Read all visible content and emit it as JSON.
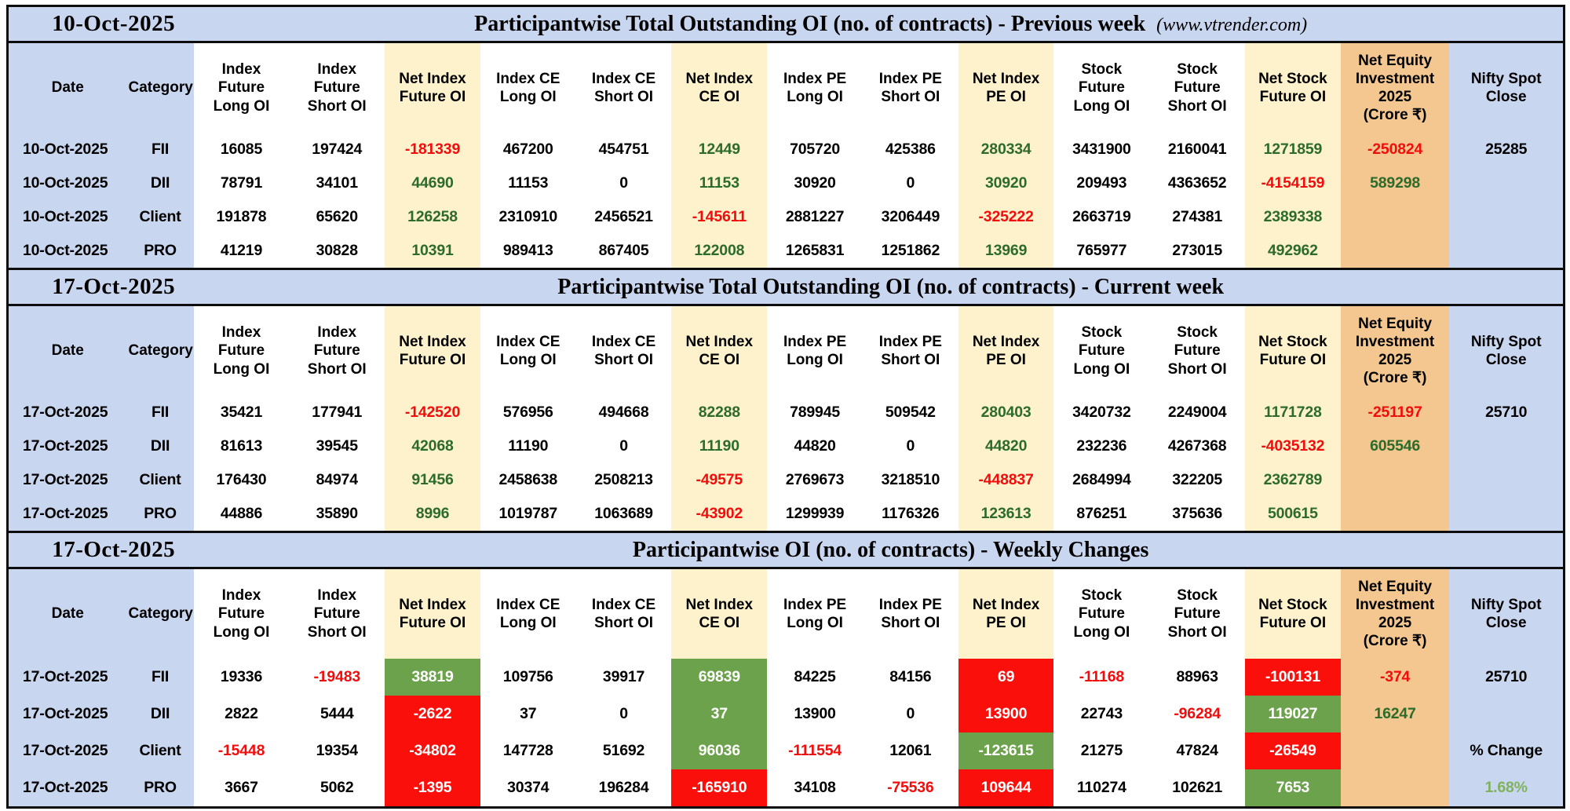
{
  "colors": {
    "band_blue": "#c9d6f0",
    "net_column_cream": "#fdf2cc",
    "equity_column_orange": "#f3c78f",
    "positive_text_green": "#2d6b2b",
    "negative_text_red": "#f20d0d",
    "change_cell_green": "#6da24d",
    "change_cell_red": "#fb0f0b",
    "pct_change_green": "#7fb25a"
  },
  "columns": [
    {
      "label": "Date",
      "bg": "blue"
    },
    {
      "label": "Category",
      "bg": "blue"
    },
    {
      "label": "Index\nFuture\nLong OI",
      "bg": "white"
    },
    {
      "label": "Index\nFuture\nShort OI",
      "bg": "white"
    },
    {
      "label": "Net Index\nFuture OI",
      "bg": "cream"
    },
    {
      "label": "Index CE\nLong OI",
      "bg": "white"
    },
    {
      "label": "Index CE\nShort OI",
      "bg": "white"
    },
    {
      "label": "Net Index\nCE OI",
      "bg": "cream"
    },
    {
      "label": "Index PE\nLong OI",
      "bg": "white"
    },
    {
      "label": "Index PE\nShort OI",
      "bg": "white"
    },
    {
      "label": "Net Index\nPE OI",
      "bg": "cream"
    },
    {
      "label": "Stock\nFuture\nLong OI",
      "bg": "white"
    },
    {
      "label": "Stock\nFuture\nShort OI",
      "bg": "white"
    },
    {
      "label": "Net Stock\nFuture OI",
      "bg": "cream"
    },
    {
      "label": "Net Equity\nInvestment\n2025\n(Crore ₹)",
      "bg": "orange"
    },
    {
      "label": "Nifty Spot\nClose",
      "bg": "blue"
    }
  ],
  "chart_data": [
    {
      "type": "table",
      "id": "previous-week",
      "date": "10-Oct-2025",
      "title": "Participantwise Total Outstanding OI (no. of contracts) - Previous week",
      "site": "(www.vtrender.com)",
      "rows": [
        {
          "date": "10-Oct-2025",
          "category": "FII",
          "cells": [
            {
              "v": "16085"
            },
            {
              "v": "197424"
            },
            {
              "v": "-181339",
              "c": "r"
            },
            {
              "v": "467200"
            },
            {
              "v": "454751"
            },
            {
              "v": "12449",
              "c": "g"
            },
            {
              "v": "705720"
            },
            {
              "v": "425386"
            },
            {
              "v": "280334",
              "c": "g"
            },
            {
              "v": "3431900"
            },
            {
              "v": "2160041"
            },
            {
              "v": "1271859",
              "c": "g"
            },
            {
              "v": "-250824",
              "c": "r"
            },
            {
              "v": "25285"
            }
          ]
        },
        {
          "date": "10-Oct-2025",
          "category": "DII",
          "cells": [
            {
              "v": "78791"
            },
            {
              "v": "34101"
            },
            {
              "v": "44690",
              "c": "g"
            },
            {
              "v": "11153"
            },
            {
              "v": "0"
            },
            {
              "v": "11153",
              "c": "g"
            },
            {
              "v": "30920"
            },
            {
              "v": "0"
            },
            {
              "v": "30920",
              "c": "g"
            },
            {
              "v": "209493"
            },
            {
              "v": "4363652"
            },
            {
              "v": "-4154159",
              "c": "r"
            },
            {
              "v": "589298",
              "c": "g"
            },
            {
              "v": ""
            }
          ]
        },
        {
          "date": "10-Oct-2025",
          "category": "Client",
          "cells": [
            {
              "v": "191878"
            },
            {
              "v": "65620"
            },
            {
              "v": "126258",
              "c": "g"
            },
            {
              "v": "2310910"
            },
            {
              "v": "2456521"
            },
            {
              "v": "-145611",
              "c": "r"
            },
            {
              "v": "2881227"
            },
            {
              "v": "3206449"
            },
            {
              "v": "-325222",
              "c": "r"
            },
            {
              "v": "2663719"
            },
            {
              "v": "274381"
            },
            {
              "v": "2389338",
              "c": "g"
            },
            {
              "v": ""
            },
            {
              "v": ""
            }
          ]
        },
        {
          "date": "10-Oct-2025",
          "category": "PRO",
          "cells": [
            {
              "v": "41219"
            },
            {
              "v": "30828"
            },
            {
              "v": "10391",
              "c": "g"
            },
            {
              "v": "989413"
            },
            {
              "v": "867405"
            },
            {
              "v": "122008",
              "c": "g"
            },
            {
              "v": "1265831"
            },
            {
              "v": "1251862"
            },
            {
              "v": "13969",
              "c": "g"
            },
            {
              "v": "765977"
            },
            {
              "v": "273015"
            },
            {
              "v": "492962",
              "c": "g"
            },
            {
              "v": ""
            },
            {
              "v": ""
            }
          ]
        }
      ]
    },
    {
      "type": "table",
      "id": "current-week",
      "date": "17-Oct-2025",
      "title": "Participantwise Total Outstanding OI (no. of contracts) - Current week",
      "site": "",
      "rows": [
        {
          "date": "17-Oct-2025",
          "category": "FII",
          "cells": [
            {
              "v": "35421"
            },
            {
              "v": "177941"
            },
            {
              "v": "-142520",
              "c": "r"
            },
            {
              "v": "576956"
            },
            {
              "v": "494668"
            },
            {
              "v": "82288",
              "c": "g"
            },
            {
              "v": "789945"
            },
            {
              "v": "509542"
            },
            {
              "v": "280403",
              "c": "g"
            },
            {
              "v": "3420732"
            },
            {
              "v": "2249004"
            },
            {
              "v": "1171728",
              "c": "g"
            },
            {
              "v": "-251197",
              "c": "r"
            },
            {
              "v": "25710"
            }
          ]
        },
        {
          "date": "17-Oct-2025",
          "category": "DII",
          "cells": [
            {
              "v": "81613"
            },
            {
              "v": "39545"
            },
            {
              "v": "42068",
              "c": "g"
            },
            {
              "v": "11190"
            },
            {
              "v": "0"
            },
            {
              "v": "11190",
              "c": "g"
            },
            {
              "v": "44820"
            },
            {
              "v": "0"
            },
            {
              "v": "44820",
              "c": "g"
            },
            {
              "v": "232236"
            },
            {
              "v": "4267368"
            },
            {
              "v": "-4035132",
              "c": "r"
            },
            {
              "v": "605546",
              "c": "g"
            },
            {
              "v": ""
            }
          ]
        },
        {
          "date": "17-Oct-2025",
          "category": "Client",
          "cells": [
            {
              "v": "176430"
            },
            {
              "v": "84974"
            },
            {
              "v": "91456",
              "c": "g"
            },
            {
              "v": "2458638"
            },
            {
              "v": "2508213"
            },
            {
              "v": "-49575",
              "c": "r"
            },
            {
              "v": "2769673"
            },
            {
              "v": "3218510"
            },
            {
              "v": "-448837",
              "c": "r"
            },
            {
              "v": "2684994"
            },
            {
              "v": "322205"
            },
            {
              "v": "2362789",
              "c": "g"
            },
            {
              "v": ""
            },
            {
              "v": ""
            }
          ]
        },
        {
          "date": "17-Oct-2025",
          "category": "PRO",
          "cells": [
            {
              "v": "44886"
            },
            {
              "v": "35890"
            },
            {
              "v": "8996",
              "c": "g"
            },
            {
              "v": "1019787"
            },
            {
              "v": "1063689"
            },
            {
              "v": "-43902",
              "c": "r"
            },
            {
              "v": "1299939"
            },
            {
              "v": "1176326"
            },
            {
              "v": "123613",
              "c": "g"
            },
            {
              "v": "876251"
            },
            {
              "v": "375636"
            },
            {
              "v": "500615",
              "c": "g"
            },
            {
              "v": ""
            },
            {
              "v": ""
            }
          ]
        }
      ]
    },
    {
      "type": "table",
      "id": "weekly-changes",
      "date": "17-Oct-2025",
      "title": "Participantwise OI (no. of contracts) - Weekly Changes",
      "site": "",
      "rows": [
        {
          "date": "17-Oct-2025",
          "category": "FII",
          "cells": [
            {
              "v": "19336"
            },
            {
              "v": "-19483",
              "c": "r"
            },
            {
              "v": "38819",
              "c": "G"
            },
            {
              "v": "109756"
            },
            {
              "v": "39917"
            },
            {
              "v": "69839",
              "c": "G"
            },
            {
              "v": "84225"
            },
            {
              "v": "84156"
            },
            {
              "v": "69",
              "c": "R"
            },
            {
              "v": "-11168",
              "c": "r"
            },
            {
              "v": "88963"
            },
            {
              "v": "-100131",
              "c": "R"
            },
            {
              "v": "-374",
              "c": "r"
            },
            {
              "v": "25710"
            }
          ]
        },
        {
          "date": "17-Oct-2025",
          "category": "DII",
          "cells": [
            {
              "v": "2822"
            },
            {
              "v": "5444"
            },
            {
              "v": "-2622",
              "c": "R"
            },
            {
              "v": "37"
            },
            {
              "v": "0"
            },
            {
              "v": "37",
              "c": "G"
            },
            {
              "v": "13900"
            },
            {
              "v": "0"
            },
            {
              "v": "13900",
              "c": "R"
            },
            {
              "v": "22743"
            },
            {
              "v": "-96284",
              "c": "r"
            },
            {
              "v": "119027",
              "c": "G"
            },
            {
              "v": "16247",
              "c": "g"
            },
            {
              "v": ""
            }
          ]
        },
        {
          "date": "17-Oct-2025",
          "category": "Client",
          "cells": [
            {
              "v": "-15448",
              "c": "r"
            },
            {
              "v": "19354"
            },
            {
              "v": "-34802",
              "c": "R"
            },
            {
              "v": "147728"
            },
            {
              "v": "51692"
            },
            {
              "v": "96036",
              "c": "G"
            },
            {
              "v": "-111554",
              "c": "r"
            },
            {
              "v": "12061"
            },
            {
              "v": "-123615",
              "c": "G"
            },
            {
              "v": "21275"
            },
            {
              "v": "47824"
            },
            {
              "v": "-26549",
              "c": "R"
            },
            {
              "v": ""
            },
            {
              "v": "% Change"
            }
          ]
        },
        {
          "date": "17-Oct-2025",
          "category": "PRO",
          "cells": [
            {
              "v": "3667"
            },
            {
              "v": "5062"
            },
            {
              "v": "-1395",
              "c": "R"
            },
            {
              "v": "30374"
            },
            {
              "v": "196284"
            },
            {
              "v": "-165910",
              "c": "R"
            },
            {
              "v": "34108"
            },
            {
              "v": "-75536",
              "c": "r"
            },
            {
              "v": "109644",
              "c": "R"
            },
            {
              "v": "110274"
            },
            {
              "v": "102621"
            },
            {
              "v": "7653",
              "c": "G"
            },
            {
              "v": ""
            },
            {
              "v": "1.68%",
              "c": "lg"
            }
          ]
        }
      ]
    }
  ]
}
